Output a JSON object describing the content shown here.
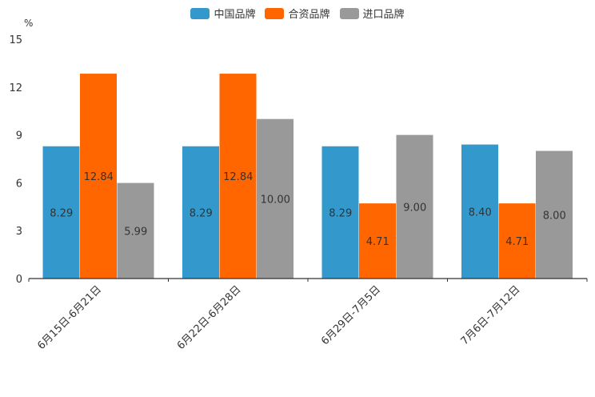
{
  "chart_data": {
    "type": "bar",
    "unit": "%",
    "categories": [
      "6月15日-6月21日",
      "6月22日-6月28日",
      "6月29日-7月5日",
      "7月6日-7月12日"
    ],
    "series": [
      {
        "name": "中国品牌",
        "color": "#3399CC",
        "values": [
          8.29,
          8.29,
          8.29,
          8.4
        ]
      },
      {
        "name": "合资品牌",
        "color": "#FF6600",
        "values": [
          12.84,
          12.84,
          4.71,
          4.71
        ]
      },
      {
        "name": "进口品牌",
        "color": "#999999",
        "values": [
          5.99,
          10.0,
          9.0,
          8.0
        ]
      }
    ],
    "ylim": [
      0,
      15
    ],
    "yticks": [
      0,
      3,
      6,
      9,
      12,
      15
    ],
    "legend_position": "top-center"
  }
}
